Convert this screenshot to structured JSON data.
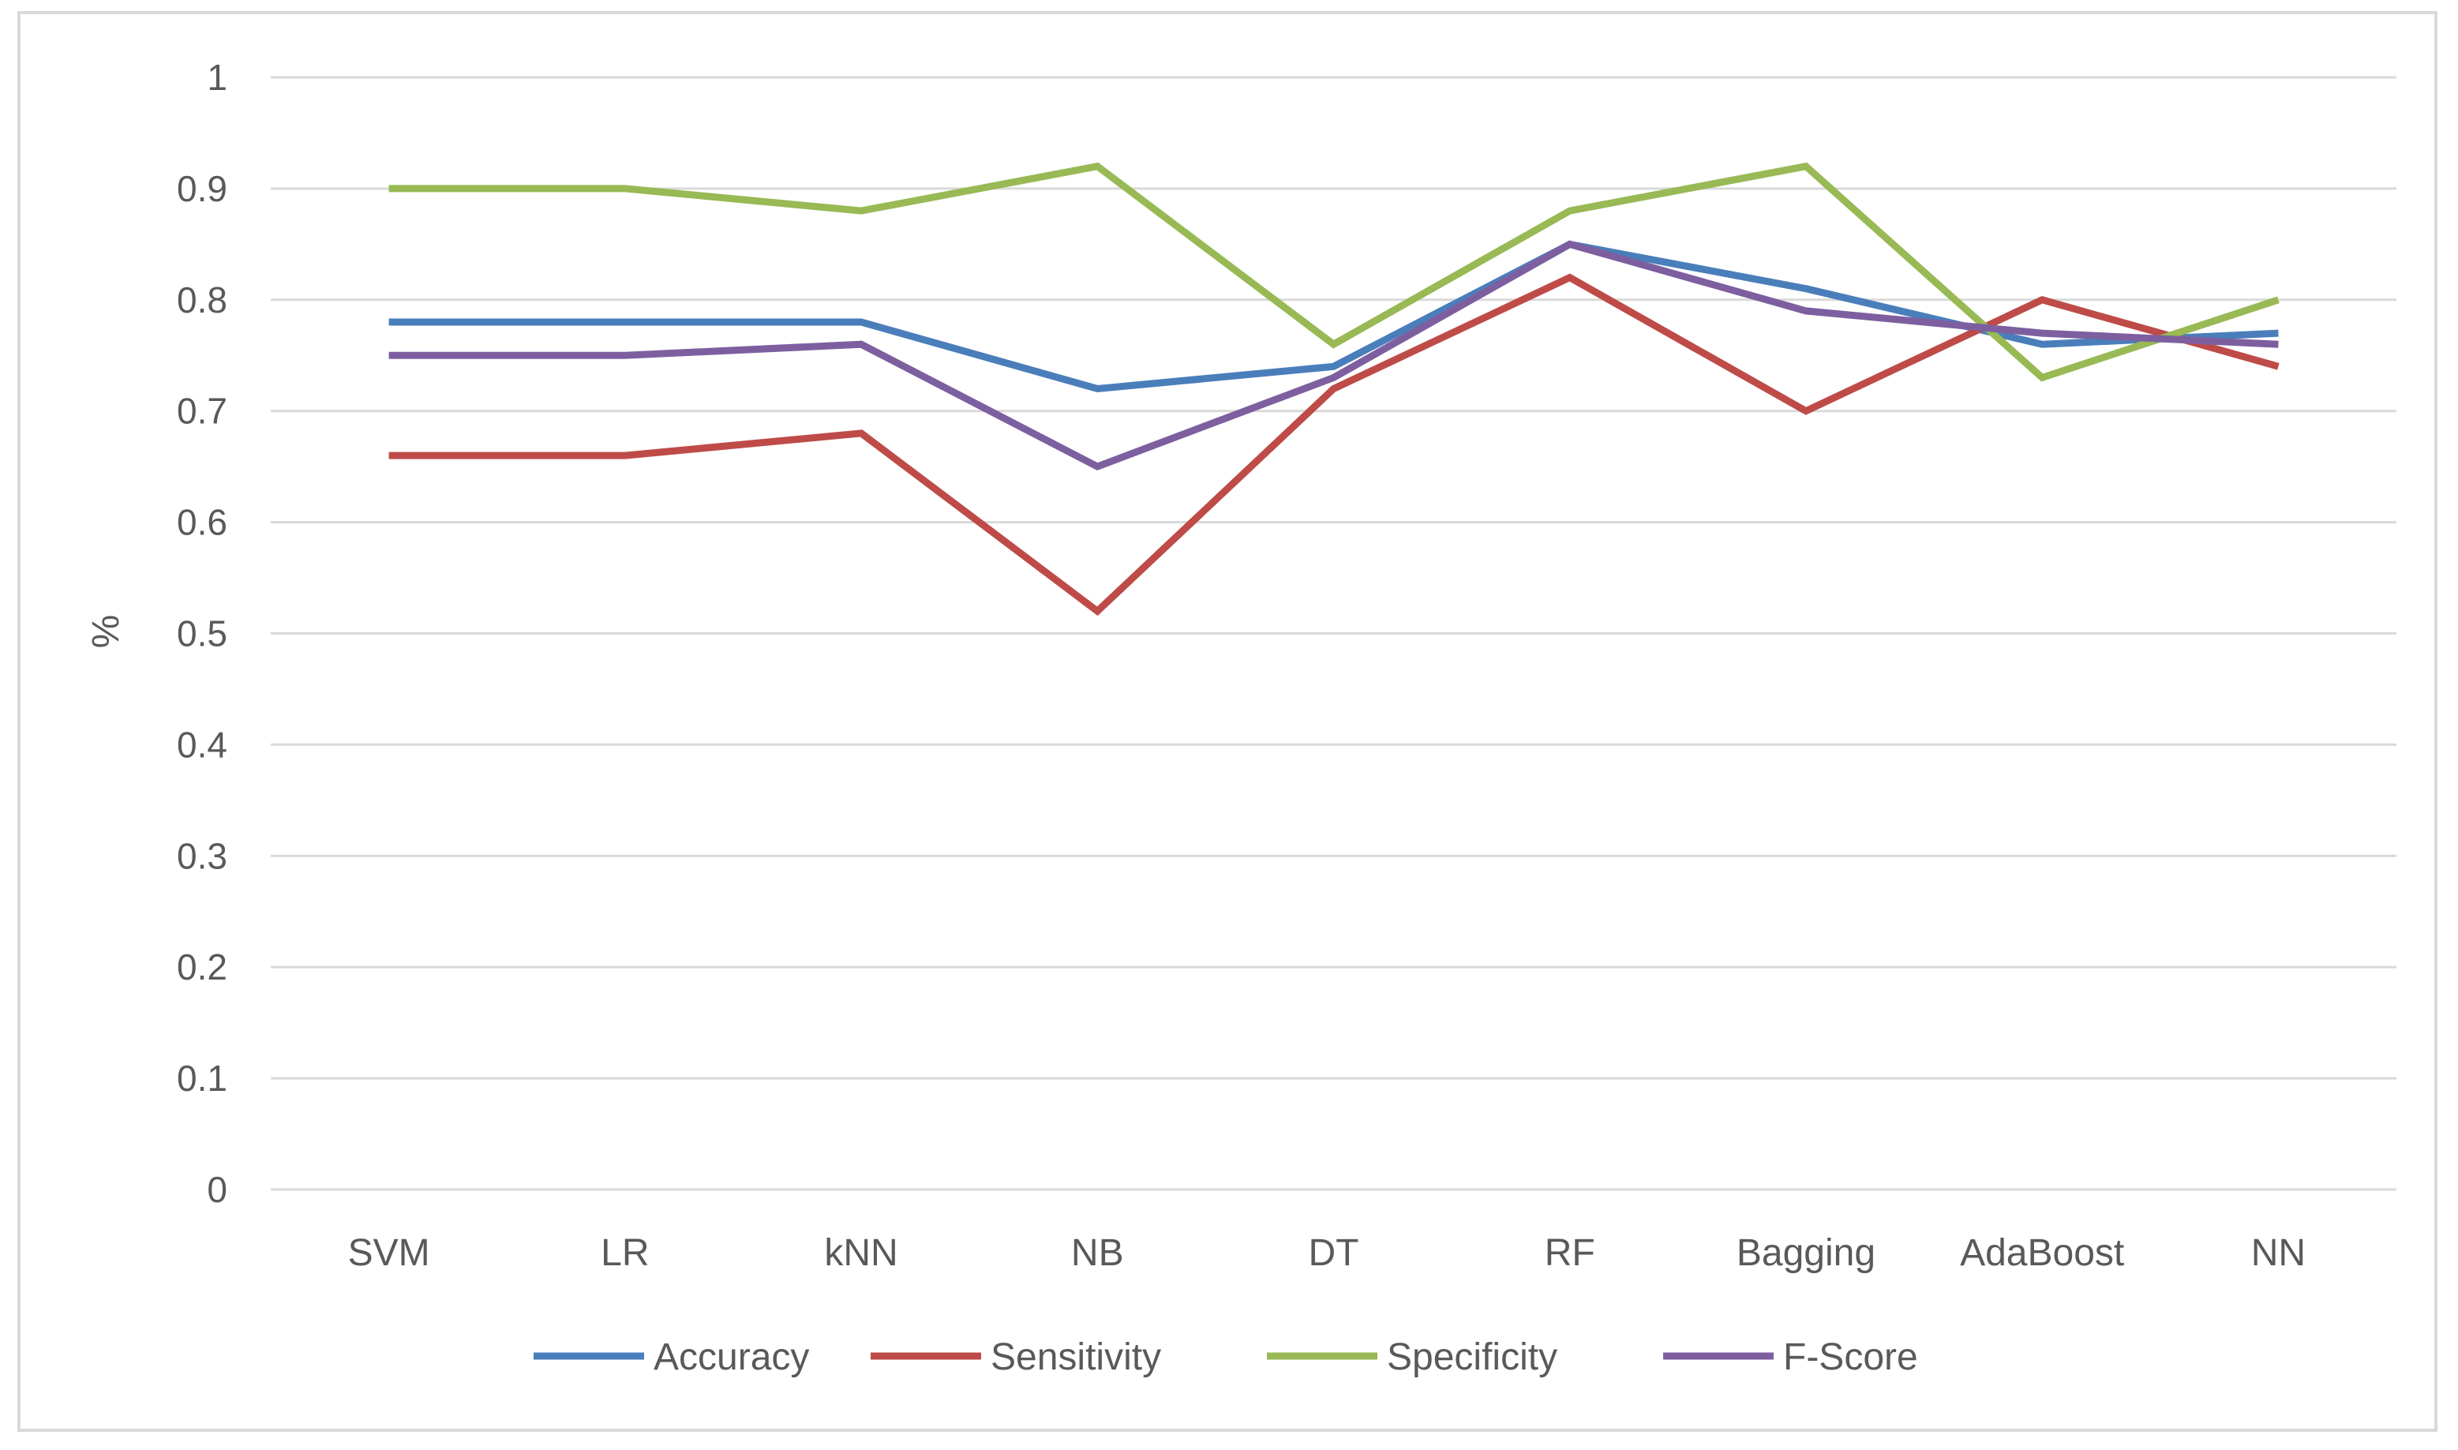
{
  "chart_data": {
    "type": "line",
    "title": "",
    "xlabel": "",
    "ylabel": "%",
    "ylim": [
      0,
      1
    ],
    "yticks": [
      "0",
      "0.1",
      "0.2",
      "0.3",
      "0.4",
      "0.5",
      "0.6",
      "0.7",
      "0.8",
      "0.9",
      "1"
    ],
    "grid": true,
    "legend_position": "bottom",
    "categories": [
      "SVM",
      "LR",
      "kNN",
      "NB",
      "DT",
      "RF",
      "Bagging",
      "AdaBoost",
      "NN"
    ],
    "series": [
      {
        "name": "Accuracy",
        "color": "#4a7ebb",
        "values": [
          0.78,
          0.78,
          0.78,
          0.72,
          0.74,
          0.85,
          0.81,
          0.76,
          0.77
        ]
      },
      {
        "name": "Sensitivity",
        "color": "#be4b48",
        "values": [
          0.66,
          0.66,
          0.68,
          0.52,
          0.72,
          0.82,
          0.7,
          0.8,
          0.74
        ]
      },
      {
        "name": "Specificity",
        "color": "#98b954",
        "values": [
          0.9,
          0.9,
          0.88,
          0.92,
          0.76,
          0.88,
          0.92,
          0.73,
          0.8
        ]
      },
      {
        "name": "F-Score",
        "color": "#7d5fa0",
        "values": [
          0.75,
          0.75,
          0.76,
          0.65,
          0.73,
          0.85,
          0.79,
          0.77,
          0.76
        ]
      }
    ]
  }
}
